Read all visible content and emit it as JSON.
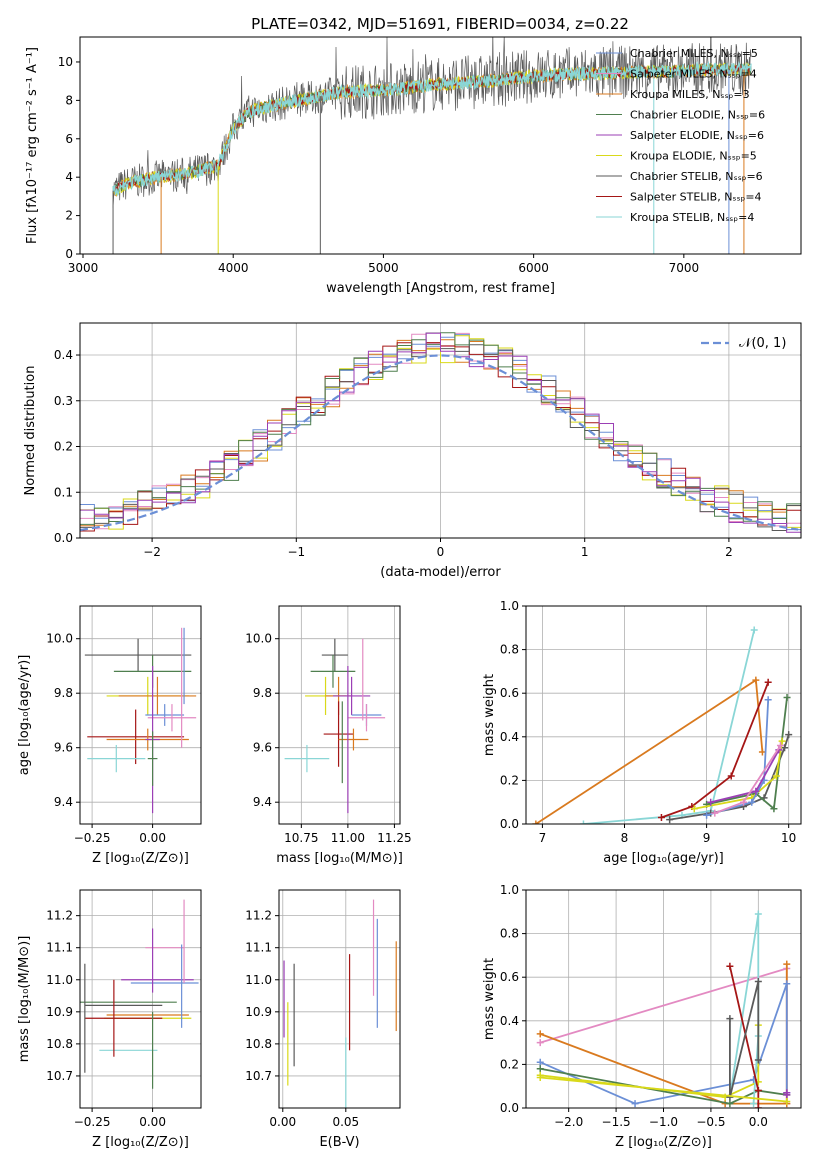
{
  "title": "PLATE=0342, MJD=51691, FIBERID=0034, z=0.22",
  "colors": [
    "#8c8c3a",
    "#d9d91a",
    "#5a5a5a",
    "#a51616",
    "#d97a1f",
    "#6b8fd6",
    "#4f7f4f",
    "#9b3fb5",
    "#e38ac2",
    "#ccdd55",
    "#8ad6d6"
  ],
  "chart_data": [
    {
      "id": "spectrum",
      "type": "line",
      "title": "PLATE=0342, MJD=51691, FIBERID=0034, z=0.22",
      "xlabel": "wavelength [Angstrom, rest frame]",
      "ylabel": "Flux [fλ10⁻¹⁷ erg cm⁻² s⁻¹ A⁻¹]",
      "xlim": [
        2980,
        7780
      ],
      "ylim": [
        0,
        11.3
      ],
      "xticks": [
        3000,
        4000,
        5000,
        6000,
        7000
      ],
      "yticks": [
        0,
        2,
        4,
        6,
        8,
        10
      ],
      "grid": false,
      "legend_position": "top-right",
      "legend": [
        {
          "name": "Chabrier MILES, Nₛₛₚ=5",
          "color": "#6b8fd6"
        },
        {
          "name": "Salpeter MILES, Nₛₛₚ=4",
          "color": "#e38ac2"
        },
        {
          "name": "Kroupa MILES, Nₛₛₚ=3",
          "color": "#d97a1f"
        },
        {
          "name": "Chabrier ELODIE, Nₛₛₚ=6",
          "color": "#4f7f4f"
        },
        {
          "name": "Salpeter ELODIE, Nₛₛₚ=6",
          "color": "#9b3fb5"
        },
        {
          "name": "Kroupa ELODIE, Nₛₛₚ=5",
          "color": "#d9d91a"
        },
        {
          "name": "Chabrier STELIB, Nₛₛₚ=6",
          "color": "#5a5a5a"
        },
        {
          "name": "Salpeter STELIB, Nₛₛₚ=4",
          "color": "#a51616"
        },
        {
          "name": "Kroupa STELIB, Nₛₛₚ=4",
          "color": "#8ad6d6"
        }
      ],
      "continuum": {
        "x": [
          3200,
          3300,
          3500,
          3700,
          3900,
          4000,
          4100,
          4300,
          4500,
          4700,
          4900,
          5100,
          5300,
          5500,
          5700,
          5900,
          6100,
          6300,
          6500,
          6700,
          6900,
          7100,
          7300,
          7450
        ],
        "y": [
          3.3,
          3.7,
          4.0,
          4.2,
          4.6,
          6.5,
          7.4,
          7.8,
          8.1,
          8.4,
          8.5,
          8.6,
          8.8,
          8.9,
          9.0,
          9.2,
          9.3,
          9.4,
          9.4,
          9.5,
          9.5,
          9.6,
          9.6,
          9.6
        ]
      },
      "line_starts": [
        {
          "x": 3200,
          "color": "#5a5a5a"
        },
        {
          "x": 3520,
          "color": "#d97a1f"
        },
        {
          "x": 3900,
          "color": "#d9d91a"
        },
        {
          "x": 4580,
          "color": "#5a5a5a"
        },
        {
          "x": 6800,
          "color": "#8ad6d6"
        },
        {
          "x": 7300,
          "color": "#6b8fd6"
        },
        {
          "x": 7400,
          "color": "#d97a1f"
        }
      ]
    },
    {
      "id": "residuals",
      "type": "histogram",
      "xlabel": "(data-model)/error",
      "ylabel": "Normed distribution",
      "xlim": [
        -2.5,
        2.5
      ],
      "ylim": [
        0,
        0.47
      ],
      "xticks": [
        -2,
        -1,
        0,
        1,
        2
      ],
      "yticks": [
        0,
        0.1,
        0.2,
        0.3,
        0.4
      ],
      "grid": true,
      "bin_width": 0.1,
      "legend_position": "top-right",
      "legend": [
        {
          "name": "𝒩(0, 1)",
          "color": "#6b8fd6"
        }
      ],
      "gaussian": {
        "mean": 0,
        "sigma": 1
      }
    },
    {
      "id": "age-vs-z",
      "type": "scatter",
      "xlabel": "Z [log₁₀(Z/Z⊙)]",
      "ylabel": "age  [log₁₀(age/yr)]",
      "xlim": [
        -0.3,
        0.2
      ],
      "ylim": [
        9.32,
        10.12
      ],
      "xticks": [
        -0.25,
        0.0
      ],
      "yticks": [
        9.4,
        9.6,
        9.8,
        10.0
      ],
      "grid": true,
      "points": [
        {
          "x": -0.06,
          "y": 9.94,
          "xerr": 0.22,
          "yerr": 0.06,
          "color": "#5a5a5a"
        },
        {
          "x": 0.0,
          "y": 9.88,
          "xerr": 0.16,
          "yerr": 0.06,
          "color": "#4f7f4f"
        },
        {
          "x": -0.02,
          "y": 9.79,
          "xerr": 0.17,
          "yerr": 0.07,
          "color": "#d9d91a"
        },
        {
          "x": 0.02,
          "y": 9.79,
          "xerr": 0.16,
          "yerr": 0.07,
          "color": "#d97a1f"
        },
        {
          "x": 0.05,
          "y": 9.72,
          "xerr": 0.08,
          "yerr": 0.04,
          "color": "#6b8fd6"
        },
        {
          "x": 0.08,
          "y": 9.71,
          "xerr": 0.1,
          "yerr": 0.05,
          "color": "#e38ac2"
        },
        {
          "x": -0.07,
          "y": 9.64,
          "xerr": 0.2,
          "yerr": 0.1,
          "color": "#a51616"
        },
        {
          "x": -0.02,
          "y": 9.63,
          "xerr": 0.17,
          "yerr": 0.04,
          "color": "#d97a1f"
        },
        {
          "x": -0.15,
          "y": 9.56,
          "xerr": 0.12,
          "yerr": 0.05,
          "color": "#8ad6d6"
        },
        {
          "x": 0.0,
          "y": 9.63,
          "xerr": 0.03,
          "yerr": 0.27,
          "color": "#9b3fb5"
        },
        {
          "x": 0.0,
          "y": 9.56,
          "xerr": 0.02,
          "yerr": 0.1,
          "color": "#4f7f4f"
        },
        {
          "x": 0.12,
          "y": 9.82,
          "xerr": 0.0,
          "yerr": 0.22,
          "color": "#e38ac2"
        },
        {
          "x": 0.13,
          "y": 9.9,
          "xerr": 0.0,
          "yerr": 0.14,
          "color": "#6b8fd6"
        }
      ]
    },
    {
      "id": "age-vs-mass",
      "type": "scatter",
      "xlabel": "mass [log₁₀(M/M⊙)]",
      "ylabel": "",
      "xlim": [
        10.63,
        11.28
      ],
      "ylim": [
        9.32,
        10.12
      ],
      "xticks": [
        10.75,
        11.0,
        11.25
      ],
      "yticks": [
        9.4,
        9.6,
        9.8,
        10.0
      ],
      "grid": true,
      "points": [
        {
          "x": 10.93,
          "y": 9.94,
          "xerr": 0.07,
          "yerr": 0.06,
          "color": "#5a5a5a"
        },
        {
          "x": 10.92,
          "y": 9.88,
          "xerr": 0.12,
          "yerr": 0.06,
          "color": "#4f7f4f"
        },
        {
          "x": 10.88,
          "y": 9.79,
          "xerr": 0.11,
          "yerr": 0.07,
          "color": "#d9d91a"
        },
        {
          "x": 10.95,
          "y": 9.79,
          "xerr": 0.07,
          "yerr": 0.07,
          "color": "#d97a1f"
        },
        {
          "x": 11.02,
          "y": 9.79,
          "xerr": 0.1,
          "yerr": 0.07,
          "color": "#9b3fb5"
        },
        {
          "x": 11.1,
          "y": 9.72,
          "xerr": 0.08,
          "yerr": 0.04,
          "color": "#6b8fd6"
        },
        {
          "x": 11.1,
          "y": 9.71,
          "xerr": 0.1,
          "yerr": 0.05,
          "color": "#e38ac2"
        },
        {
          "x": 10.95,
          "y": 9.65,
          "xerr": 0.08,
          "yerr": 0.12,
          "color": "#a51616"
        },
        {
          "x": 11.03,
          "y": 9.63,
          "xerr": 0.08,
          "yerr": 0.04,
          "color": "#d97a1f"
        },
        {
          "x": 10.78,
          "y": 9.56,
          "xerr": 0.12,
          "yerr": 0.05,
          "color": "#8ad6d6"
        },
        {
          "x": 11.0,
          "y": 9.63,
          "xerr": 0.0,
          "yerr": 0.27,
          "color": "#9b3fb5"
        },
        {
          "x": 10.97,
          "y": 9.62,
          "xerr": 0.0,
          "yerr": 0.15,
          "color": "#4f7f4f"
        },
        {
          "x": 11.08,
          "y": 9.85,
          "xerr": 0.0,
          "yerr": 0.15,
          "color": "#e38ac2"
        }
      ]
    },
    {
      "id": "weight-vs-age",
      "type": "line",
      "xlabel": "age  [log₁₀(age/yr)]",
      "ylabel": "mass weight",
      "xlim": [
        6.8,
        10.15
      ],
      "ylim": [
        0,
        1.0
      ],
      "xticks": [
        7,
        8,
        9,
        10
      ],
      "yticks": [
        0.0,
        0.2,
        0.4,
        0.6,
        0.8,
        1.0
      ],
      "grid": true,
      "series": [
        {
          "color": "#d97a1f",
          "x": [
            6.92,
            9.6,
            9.68
          ],
          "y": [
            0.0,
            0.66,
            0.33
          ]
        },
        {
          "color": "#8ad6d6",
          "x": [
            7.5,
            8.7,
            9.05,
            9.58
          ],
          "y": [
            0.0,
            0.04,
            0.06,
            0.89
          ]
        },
        {
          "color": "#a51616",
          "x": [
            8.45,
            8.82,
            9.3,
            9.75
          ],
          "y": [
            0.03,
            0.08,
            0.22,
            0.65
          ]
        },
        {
          "color": "#5a5a5a",
          "x": [
            8.55,
            9.05,
            9.45,
            9.7,
            9.95,
            10.0
          ],
          "y": [
            0.02,
            0.05,
            0.08,
            0.12,
            0.35,
            0.41
          ]
        },
        {
          "color": "#4f7f4f",
          "x": [
            9.0,
            9.6,
            9.82,
            9.98
          ],
          "y": [
            0.09,
            0.14,
            0.07,
            0.58
          ]
        },
        {
          "color": "#d9d91a",
          "x": [
            8.85,
            9.55,
            9.85,
            9.92
          ],
          "y": [
            0.07,
            0.12,
            0.22,
            0.38
          ]
        },
        {
          "color": "#6b8fd6",
          "x": [
            9.0,
            9.55,
            9.7,
            9.75
          ],
          "y": [
            0.04,
            0.1,
            0.2,
            0.57
          ]
        },
        {
          "color": "#9b3fb5",
          "x": [
            9.05,
            9.6,
            9.88
          ],
          "y": [
            0.1,
            0.15,
            0.34
          ]
        },
        {
          "color": "#e38ac2",
          "x": [
            9.1,
            9.45,
            9.9
          ],
          "y": [
            0.05,
            0.1,
            0.36
          ]
        }
      ]
    },
    {
      "id": "mass-vs-z",
      "type": "scatter",
      "xlabel": "Z [log₁₀(Z/Z⊙)]",
      "ylabel": "mass [log₁₀(M/M⊙)]",
      "xlim": [
        -0.3,
        0.2
      ],
      "ylim": [
        10.6,
        11.28
      ],
      "xticks": [
        -0.25,
        0.0
      ],
      "yticks": [
        10.7,
        10.8,
        10.9,
        11.0,
        11.1,
        11.2
      ],
      "grid": true,
      "points": [
        {
          "x": 0.05,
          "y": 11.1,
          "xerr": 0.08,
          "yerr": 0.0,
          "color": "#e38ac2"
        },
        {
          "x": 0.02,
          "y": 11.0,
          "xerr": 0.15,
          "yerr": 0.0,
          "color": "#9b3fb5"
        },
        {
          "x": 0.05,
          "y": 10.99,
          "xerr": 0.14,
          "yerr": 0.0,
          "color": "#6b8fd6"
        },
        {
          "x": -0.1,
          "y": 10.93,
          "xerr": 0.2,
          "yerr": 0.0,
          "color": "#4f7f4f"
        },
        {
          "x": -0.12,
          "y": 10.92,
          "xerr": 0.16,
          "yerr": 0.0,
          "color": "#5a5a5a"
        },
        {
          "x": -0.02,
          "y": 10.88,
          "xerr": 0.18,
          "yerr": 0.0,
          "color": "#d9d91a"
        },
        {
          "x": -0.02,
          "y": 10.89,
          "xerr": 0.17,
          "yerr": 0.0,
          "color": "#d97a1f"
        },
        {
          "x": -0.12,
          "y": 10.88,
          "xerr": 0.16,
          "yerr": 0.0,
          "color": "#a51616"
        },
        {
          "x": -0.1,
          "y": 10.78,
          "xerr": 0.12,
          "yerr": 0.0,
          "color": "#8ad6d6"
        },
        {
          "x": -0.28,
          "y": 10.88,
          "xerr": 0.0,
          "yerr": 0.17,
          "color": "#5a5a5a"
        },
        {
          "x": -0.16,
          "y": 10.88,
          "xerr": 0.0,
          "yerr": 0.12,
          "color": "#a51616"
        },
        {
          "x": 0.0,
          "y": 11.06,
          "xerr": 0.0,
          "yerr": 0.1,
          "color": "#9b3fb5"
        },
        {
          "x": 0.0,
          "y": 10.78,
          "xerr": 0.0,
          "yerr": 0.12,
          "color": "#4f7f4f"
        },
        {
          "x": 0.13,
          "y": 11.12,
          "xerr": 0.0,
          "yerr": 0.13,
          "color": "#e38ac2"
        },
        {
          "x": 0.12,
          "y": 10.98,
          "xerr": 0.0,
          "yerr": 0.13,
          "color": "#6b8fd6"
        }
      ]
    },
    {
      "id": "mass-vs-ebv",
      "type": "scatter",
      "xlabel": "E(B-V)",
      "ylabel": "",
      "xlim": [
        -0.003,
        0.093
      ],
      "ylim": [
        10.6,
        11.28
      ],
      "xticks": [
        0.0,
        0.05
      ],
      "yticks": [
        10.7,
        10.8,
        10.9,
        11.0,
        11.1,
        11.2
      ],
      "grid": true,
      "points": [
        {
          "x": 0.001,
          "y": 10.94,
          "xerr": 0.0,
          "yerr": 0.12,
          "color": "#9b3fb5"
        },
        {
          "x": 0.004,
          "y": 10.8,
          "xerr": 0.0,
          "yerr": 0.13,
          "color": "#d9d91a"
        },
        {
          "x": 0.009,
          "y": 10.89,
          "xerr": 0.0,
          "yerr": 0.16,
          "color": "#5a5a5a"
        },
        {
          "x": 0.05,
          "y": 10.7,
          "xerr": 0.0,
          "yerr": 0.12,
          "color": "#8ad6d6"
        },
        {
          "x": 0.053,
          "y": 10.93,
          "xerr": 0.0,
          "yerr": 0.15,
          "color": "#a51616"
        },
        {
          "x": 0.072,
          "y": 11.1,
          "xerr": 0.0,
          "yerr": 0.15,
          "color": "#e38ac2"
        },
        {
          "x": 0.075,
          "y": 11.02,
          "xerr": 0.0,
          "yerr": 0.17,
          "color": "#6b8fd6"
        },
        {
          "x": 0.09,
          "y": 10.98,
          "xerr": 0.0,
          "yerr": 0.14,
          "color": "#d97a1f"
        }
      ]
    },
    {
      "id": "weight-vs-z",
      "type": "line",
      "xlabel": "Z [log₁₀(Z/Z⊙)]",
      "ylabel": "mass weight",
      "xlim": [
        -2.45,
        0.45
      ],
      "ylim": [
        0,
        1.0
      ],
      "xticks": [
        -2.0,
        -1.5,
        -1.0,
        -0.5,
        0.0
      ],
      "yticks": [
        0.0,
        0.2,
        0.4,
        0.6,
        0.8,
        1.0
      ],
      "grid": true,
      "series": [
        {
          "color": "#e38ac2",
          "x": [
            -2.3,
            0.3,
            0.3
          ],
          "y": [
            0.3,
            0.64,
            0.02
          ]
        },
        {
          "color": "#d97a1f",
          "x": [
            -2.3,
            -0.35,
            0.3,
            0.3
          ],
          "y": [
            0.34,
            0.02,
            0.02,
            0.66
          ]
        },
        {
          "color": "#6b8fd6",
          "x": [
            -2.3,
            -1.3,
            -0.05,
            0.3,
            0.3
          ],
          "y": [
            0.21,
            0.02,
            0.13,
            0.57,
            0.07
          ]
        },
        {
          "color": "#4f7f4f",
          "x": [
            -2.3,
            -0.3,
            0.0,
            0.3
          ],
          "y": [
            0.18,
            0.02,
            0.08,
            0.06
          ]
        },
        {
          "color": "#d9d91a",
          "x": [
            -2.3,
            -0.35,
            0.0,
            0.0
          ],
          "y": [
            0.15,
            0.05,
            0.12,
            0.38
          ]
        },
        {
          "color": "#8ad6d6",
          "x": [
            -0.3,
            0.0,
            0.0,
            -0.05
          ],
          "y": [
            0.05,
            0.89,
            0.33,
            0.02
          ]
        },
        {
          "color": "#a51616",
          "x": [
            -0.3,
            0.0,
            0.0
          ],
          "y": [
            0.65,
            0.08,
            0.0
          ]
        },
        {
          "color": "#5a5a5a",
          "x": [
            -0.3,
            -0.3,
            0.0,
            0.0
          ],
          "y": [
            0.41,
            0.05,
            0.58,
            0.22
          ]
        },
        {
          "color": "#9b3fb5",
          "x": [
            0.3,
            0.3
          ],
          "y": [
            0.07,
            0.06
          ]
        },
        {
          "color": "#d9d91a",
          "x": [
            -2.3,
            0.3
          ],
          "y": [
            0.14,
            0.03
          ]
        }
      ]
    }
  ]
}
